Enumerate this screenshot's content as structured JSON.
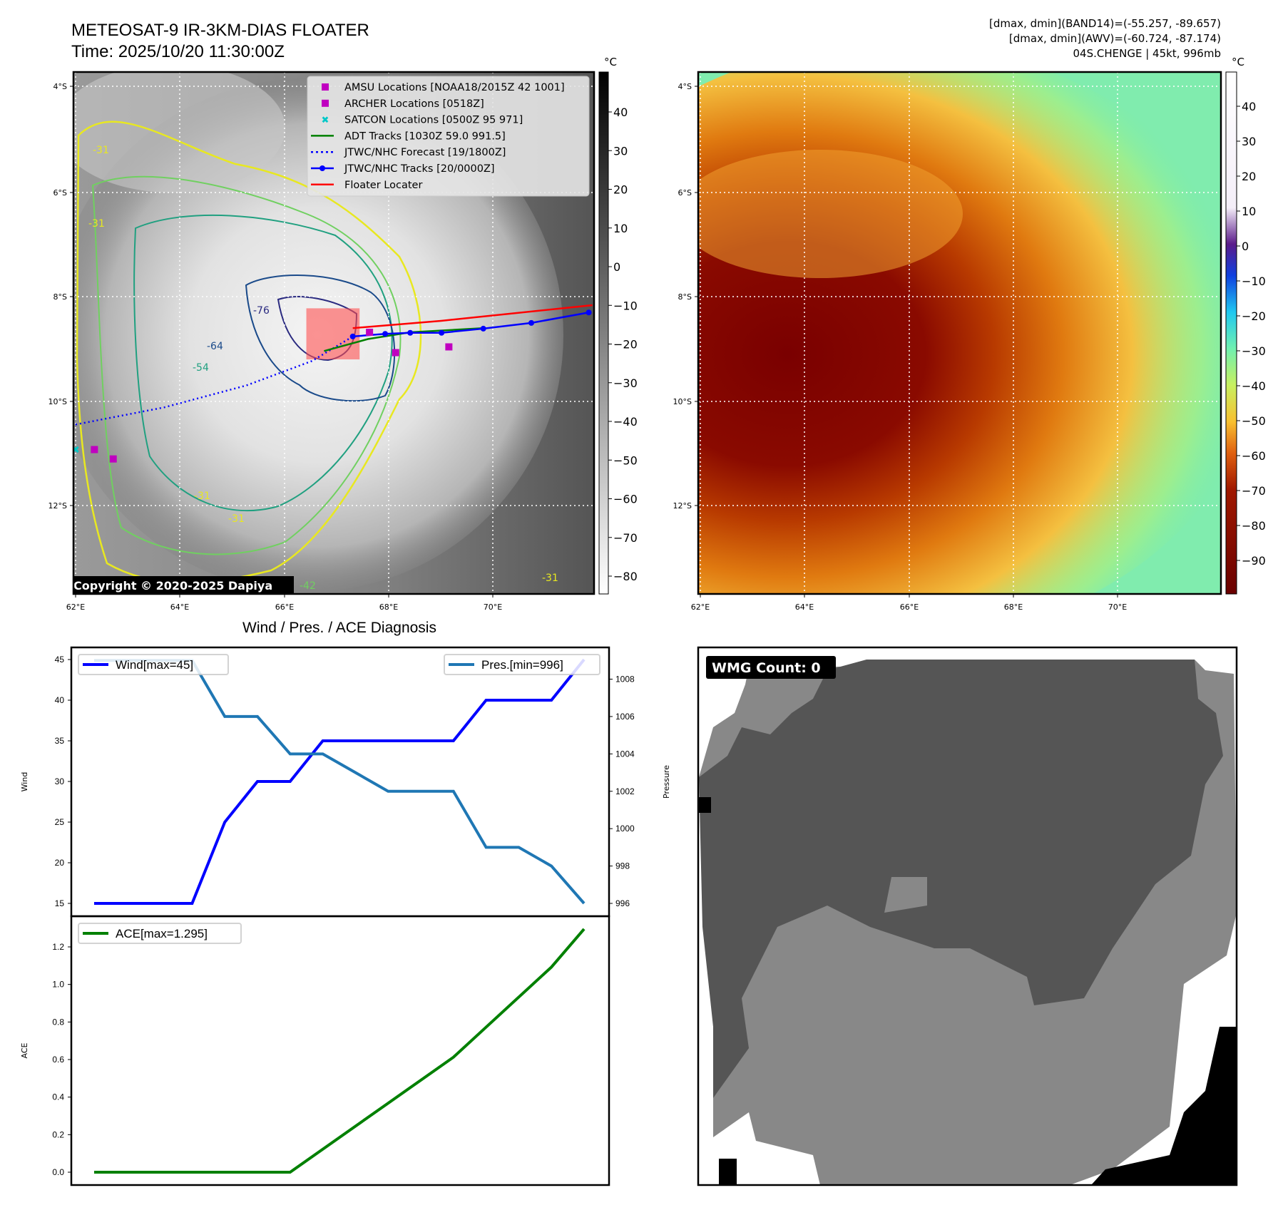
{
  "header": {
    "title": "METEOSAT-9 IR-3KM-DIAS FLOATER",
    "time": "Time: 2025/10/20 11:30:00Z",
    "stats_line1": "[dmax, dmin](BAND14)=(-55.257, -89.657)",
    "stats_line2": "[dmax, dmin](AWV)=(-60.724, -87.174)",
    "storm_line": "04S.CHENGE | 45kt, 996mb"
  },
  "maps": {
    "lat_ticks": [
      "4°S",
      "6°S",
      "8°S",
      "10°S",
      "12°S"
    ],
    "lon_ticks": [
      "62°E",
      "64°E",
      "66°E",
      "68°E",
      "70°E"
    ],
    "unit": "°C",
    "left_colorbar_ticks": [
      "40",
      "30",
      "20",
      "10",
      "0",
      "−10",
      "−20",
      "−30",
      "−40",
      "−50",
      "−60",
      "−70",
      "−80"
    ],
    "right_colorbar_ticks": [
      "40",
      "30",
      "20",
      "10",
      "0",
      "−10",
      "−20",
      "−30",
      "−40",
      "−50",
      "−60",
      "−70",
      "−80",
      "−90"
    ],
    "copyright": "Copyright © 2020-2025 Dapiya",
    "contour_labels": [
      "-31",
      "-31",
      "-31",
      "-31",
      "-31",
      "-42",
      "-54",
      "-64",
      "-76"
    ],
    "legend": [
      {
        "label": "AMSU Locations [NOAA18/2015Z 42 1001]",
        "color": "#c000c0",
        "marker": "square"
      },
      {
        "label": "ARCHER Locations [0518Z]",
        "color": "#c000c0",
        "marker": "square"
      },
      {
        "label": "SATCON Locations [0500Z 95 971]",
        "color": "#00c8c8",
        "marker": "x"
      },
      {
        "label": "ADT Tracks [1030Z 59.0 991.5]",
        "color": "#008000",
        "marker": "line"
      },
      {
        "label": "JTWC/NHC Forecast [19/1800Z]",
        "color": "#0000ff",
        "marker": "dotted"
      },
      {
        "label": "JTWC/NHC Tracks [20/0000Z]",
        "color": "#0000ff",
        "marker": "line-dot"
      },
      {
        "label": "Floater Locater",
        "color": "#ff0000",
        "marker": "line"
      }
    ],
    "tracks": {
      "jtwc_track": [
        [
          71.83,
          8.34
        ],
        [
          70.73,
          8.54
        ],
        [
          69.81,
          8.65
        ],
        [
          69.01,
          8.73
        ],
        [
          68.41,
          8.73
        ],
        [
          67.93,
          8.75
        ],
        [
          67.31,
          8.8
        ]
      ],
      "jtwc_forecast": [
        [
          62.0,
          10.49
        ],
        [
          63.7,
          10.16
        ],
        [
          65.27,
          9.74
        ],
        [
          66.53,
          9.27
        ],
        [
          67.31,
          8.8
        ]
      ],
      "adt_track": [
        [
          66.76,
          9.08
        ],
        [
          67.6,
          8.85
        ],
        [
          68.41,
          8.72
        ],
        [
          69.83,
          8.64
        ]
      ],
      "floater_line": [
        [
          67.31,
          8.64
        ],
        [
          69.0,
          8.5
        ],
        [
          71.9,
          8.2
        ]
      ],
      "floater_box": {
        "lon": [
          66.42,
          67.44
        ],
        "lat": [
          8.26,
          9.24
        ]
      },
      "amsu_points": [
        [
          67.63,
          8.72
        ],
        [
          68.13,
          9.11
        ],
        [
          69.15,
          9.0
        ],
        [
          62.36,
          10.97
        ],
        [
          62.72,
          11.15
        ]
      ],
      "satcon_points": [
        [
          62.0,
          10.97
        ]
      ]
    }
  },
  "chart_data": [
    {
      "type": "line",
      "title": "Wind / Pres. / ACE Diagnosis",
      "ylabel": "Wind",
      "ylabel_right": "Pressure",
      "x": [
        0,
        1,
        2,
        3,
        4,
        5,
        6,
        7,
        8,
        9,
        10,
        11,
        12,
        13,
        14,
        15
      ],
      "series": [
        {
          "name": "Wind[max=45]",
          "axis": "left",
          "color": "#0000ff",
          "values": [
            15,
            15,
            15,
            15,
            25,
            30,
            30,
            35,
            35,
            35,
            35,
            35,
            40,
            40,
            40,
            45
          ]
        },
        {
          "name": "Pres.[min=996]",
          "axis": "right",
          "color": "#1f77b4",
          "values": [
            1009,
            1009,
            1009,
            1009,
            1006,
            1006,
            1004,
            1004,
            1003,
            1002,
            1002,
            1002,
            999,
            999,
            998,
            996
          ]
        }
      ],
      "yticks": [
        "15",
        "20",
        "25",
        "30",
        "35",
        "40",
        "45"
      ],
      "yticks_right": [
        "996",
        "998",
        "1000",
        "1002",
        "1004",
        "1006",
        "1008"
      ],
      "ylim": [
        15,
        45
      ],
      "ylim_right": [
        996,
        1008
      ]
    },
    {
      "type": "line",
      "ylabel": "ACE",
      "x": [
        0,
        1,
        2,
        3,
        4,
        5,
        6,
        7,
        8,
        9,
        10,
        11,
        12,
        13,
        14,
        15
      ],
      "series": [
        {
          "name": "ACE[max=1.295]",
          "color": "#008000",
          "values": [
            0,
            0,
            0,
            0,
            0,
            0,
            0,
            0.1225,
            0.245,
            0.3675,
            0.49,
            0.6125,
            0.7725,
            0.9325,
            1.0925,
            1.295
          ]
        }
      ],
      "yticks": [
        "0.0",
        "0.2",
        "0.4",
        "0.6",
        "0.8",
        "1.0",
        "1.2"
      ],
      "ylim": [
        0,
        1.2
      ]
    }
  ],
  "wmg": {
    "label": "WMG Count: 0"
  }
}
